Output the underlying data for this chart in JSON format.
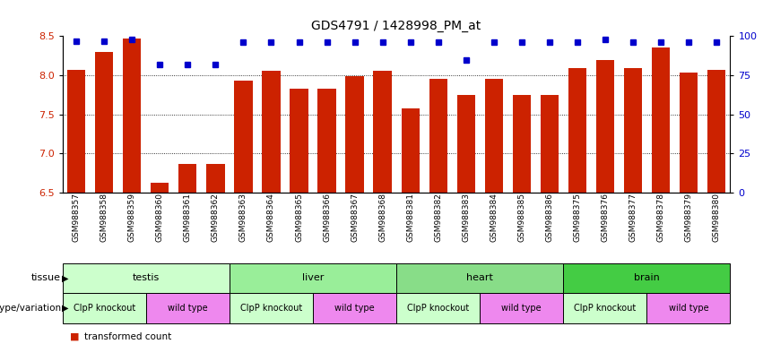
{
  "title": "GDS4791 / 1428998_PM_at",
  "samples": [
    "GSM988357",
    "GSM988358",
    "GSM988359",
    "GSM988360",
    "GSM988361",
    "GSM988362",
    "GSM988363",
    "GSM988364",
    "GSM988365",
    "GSM988366",
    "GSM988367",
    "GSM988368",
    "GSM988381",
    "GSM988382",
    "GSM988383",
    "GSM988384",
    "GSM988385",
    "GSM988386",
    "GSM988375",
    "GSM988376",
    "GSM988377",
    "GSM988378",
    "GSM988379",
    "GSM988380"
  ],
  "bar_values": [
    8.07,
    8.3,
    8.47,
    6.63,
    6.87,
    6.87,
    7.93,
    8.06,
    7.83,
    7.83,
    7.99,
    8.06,
    7.58,
    7.95,
    7.75,
    7.95,
    7.75,
    7.75,
    8.09,
    8.2,
    8.09,
    8.35,
    8.04,
    8.07
  ],
  "percentile_values": [
    97,
    97,
    98,
    82,
    82,
    82,
    96,
    96,
    96,
    96,
    96,
    96,
    96,
    96,
    85,
    96,
    96,
    96,
    96,
    98,
    96,
    96,
    96,
    96
  ],
  "bar_color": "#cc2200",
  "percentile_color": "#0000cc",
  "ylim_left": [
    6.5,
    8.5
  ],
  "ylim_right": [
    0,
    100
  ],
  "yticks_left": [
    6.5,
    7.0,
    7.5,
    8.0,
    8.5
  ],
  "yticks_right": [
    0,
    25,
    50,
    75,
    100
  ],
  "tissue_groups": [
    {
      "label": "testis",
      "start": 0,
      "end": 5,
      "color": "#ccffcc"
    },
    {
      "label": "liver",
      "start": 6,
      "end": 11,
      "color": "#99ee99"
    },
    {
      "label": "heart",
      "start": 12,
      "end": 17,
      "color": "#88dd88"
    },
    {
      "label": "brain",
      "start": 18,
      "end": 23,
      "color": "#44cc44"
    }
  ],
  "genotype_groups": [
    {
      "label": "ClpP knockout",
      "start": 0,
      "end": 2,
      "color": "#ccffcc"
    },
    {
      "label": "wild type",
      "start": 3,
      "end": 5,
      "color": "#ee88ee"
    },
    {
      "label": "ClpP knockout",
      "start": 6,
      "end": 8,
      "color": "#ccffcc"
    },
    {
      "label": "wild type",
      "start": 9,
      "end": 11,
      "color": "#ee88ee"
    },
    {
      "label": "ClpP knockout",
      "start": 12,
      "end": 14,
      "color": "#ccffcc"
    },
    {
      "label": "wild type",
      "start": 15,
      "end": 17,
      "color": "#ee88ee"
    },
    {
      "label": "ClpP knockout",
      "start": 18,
      "end": 20,
      "color": "#ccffcc"
    },
    {
      "label": "wild type",
      "start": 21,
      "end": 23,
      "color": "#ee88ee"
    }
  ]
}
